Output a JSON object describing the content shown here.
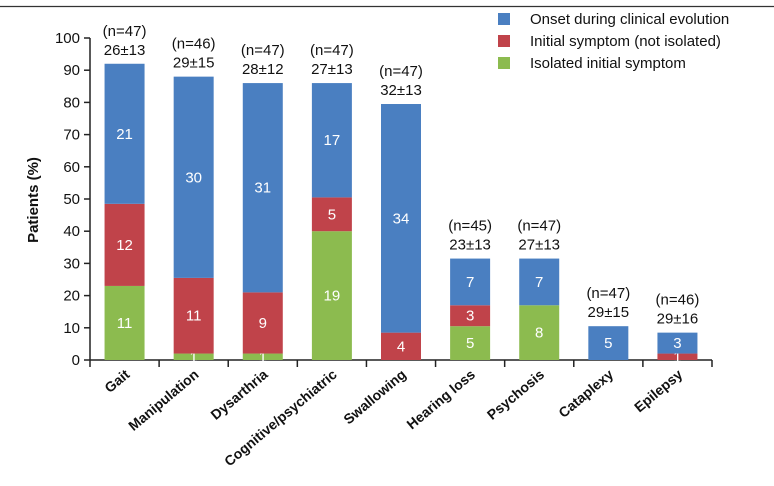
{
  "chart_data": {
    "type": "bar",
    "stacked": true,
    "ylabel": "Patients (%)",
    "xlabel": "",
    "ylim": [
      0,
      100
    ],
    "yticks": [
      0,
      10,
      20,
      30,
      40,
      50,
      60,
      70,
      80,
      90,
      100
    ],
    "grid": false,
    "legend_position": "top-right",
    "categories": [
      "Gait",
      "Manipulation",
      "Dysarthria",
      "Cognitive/psychiatric",
      "Swallowing",
      "Hearing loss",
      "Psychosis",
      "Cataplexy",
      "Epilepsy"
    ],
    "annotations_n": [
      "(n=47)",
      "(n=46)",
      "(n=47)",
      "(n=47)",
      "(n=47)",
      "(n=45)",
      "(n=47)",
      "(n=47)",
      "(n=46)"
    ],
    "annotations_age": [
      "26±13",
      "29±15",
      "28±12",
      "27±13",
      "32±13",
      "23±13",
      "27±13",
      "29±15",
      "29±16"
    ],
    "series": [
      {
        "name": "Isolated initial symptom",
        "color": "#8cbb4f",
        "values": [
          23,
          2,
          2,
          40,
          0,
          10.5,
          17,
          0,
          0
        ],
        "labels": [
          "11",
          "1",
          "1",
          "19",
          "",
          "5",
          "8",
          "",
          ""
        ]
      },
      {
        "name": "Initial symptom (not isolated)",
        "color": "#c0434a",
        "values": [
          25.5,
          23.5,
          19,
          10.5,
          8.5,
          6.5,
          0,
          0,
          2
        ],
        "labels": [
          "12",
          "11",
          "9",
          "5",
          "4",
          "3",
          "0",
          "",
          "1"
        ]
      },
      {
        "name": "Onset during clinical evolution",
        "color": "#4a7fc1",
        "values": [
          43.5,
          62.5,
          65,
          35.5,
          71,
          14.5,
          14.5,
          10.5,
          6.5
        ],
        "labels": [
          "21",
          "30",
          "31",
          "17",
          "34",
          "7",
          "7",
          "5",
          "3"
        ]
      }
    ],
    "legend_order": [
      "Onset during clinical evolution",
      "Initial symptom (not isolated)",
      "Isolated initial symptom"
    ]
  }
}
